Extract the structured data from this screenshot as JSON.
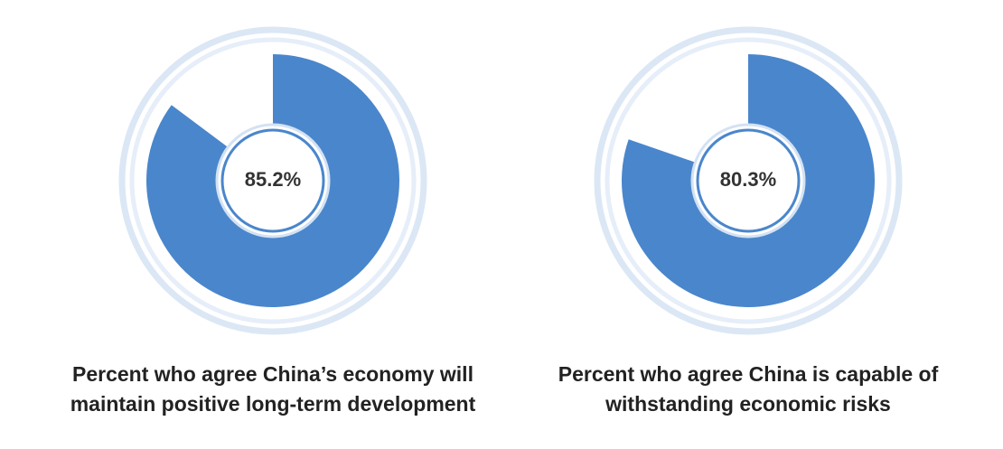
{
  "chart_data": [
    {
      "type": "donut",
      "title": "Percent who agree China’s economy will maintain positive long-term development",
      "values": [
        85.2
      ],
      "value_labels": [
        "85.2%"
      ],
      "color": "#4a86cc"
    },
    {
      "type": "donut",
      "title": "Percent who agree China is capable of withstanding economic risks",
      "values": [
        80.3
      ],
      "value_labels": [
        "80.3%"
      ],
      "color": "#4a86cc"
    }
  ]
}
